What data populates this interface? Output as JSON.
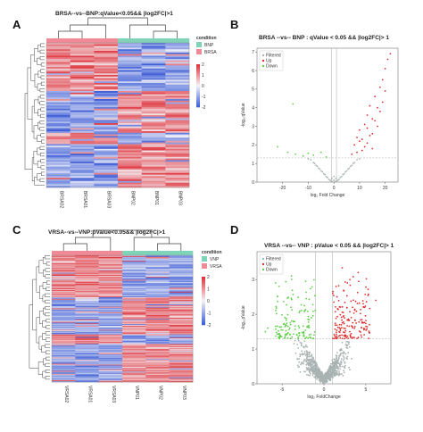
{
  "colors": {
    "heat_low": "#3f5fd8",
    "heat_mid": "#f3f3f7",
    "heat_high": "#e0333b",
    "ann_a": "#f08a96",
    "ann_b": "#7fd3b7",
    "volcano_up": "#e03030",
    "volcano_down": "#5fcf4a",
    "volcano_filtered": "#a9b3b1"
  },
  "chart_data": [
    {
      "panel": "A",
      "type": "heatmap",
      "title": "BRSA--vs--BNP:qValue<0.05&& |log2FC|>1",
      "columns": [
        "BRSA02",
        "BRSA01",
        "BRSA03",
        "BNP02",
        "BNP01",
        "BNP03"
      ],
      "column_groups": [
        "BRSA",
        "BRSA",
        "BRSA",
        "BNP",
        "BNP",
        "BNP"
      ],
      "legend_title": "condition",
      "legend_items": [
        {
          "label": "BNP",
          "color": "#7fd3b7"
        },
        {
          "label": "BRSA",
          "color": "#f08a96"
        }
      ],
      "scale_ticks": [
        "2",
        "1",
        "0",
        "-1",
        "-2"
      ],
      "scale_range": [
        -2,
        2
      ],
      "row_count": 90
    },
    {
      "panel": "B",
      "type": "scatter",
      "title": "BRSA --vs-- BNP : qValue < 0.05 && |log2FC|> 1",
      "xlabel": "log₂ Fold Change",
      "ylabel": "-log₁₀qValue",
      "xlim": [
        -30,
        25
      ],
      "ylim": [
        0,
        7.2
      ],
      "x_ticks": [
        "-20",
        "-10",
        "0",
        "10",
        "20"
      ],
      "y_ticks": [
        "0",
        "1",
        "2",
        "3",
        "4",
        "5",
        "6",
        "7"
      ],
      "legend": [
        "Filtered",
        "Up",
        "Down"
      ],
      "threshold_y": 1.3,
      "threshold_x": [
        -1,
        1
      ],
      "up_points": [
        [
          8,
          2.0
        ],
        [
          9,
          2.4
        ],
        [
          10,
          2.8
        ],
        [
          11,
          2.3
        ],
        [
          12,
          3.1
        ],
        [
          13,
          3.6
        ],
        [
          14,
          4.1
        ],
        [
          15,
          3.4
        ],
        [
          16,
          4.6
        ],
        [
          17,
          4.0
        ],
        [
          18,
          5.1
        ],
        [
          19,
          5.5
        ],
        [
          20,
          6.1
        ],
        [
          21,
          6.6
        ],
        [
          22,
          6.9
        ],
        [
          11,
          1.7
        ],
        [
          13,
          2.1
        ],
        [
          15,
          2.6
        ],
        [
          17,
          3.0
        ],
        [
          9,
          1.6
        ],
        [
          12,
          1.9
        ],
        [
          14,
          2.5
        ],
        [
          16,
          3.3
        ],
        [
          18,
          3.8
        ],
        [
          19,
          4.3
        ],
        [
          10,
          2.2
        ],
        [
          13,
          2.9
        ],
        [
          20,
          4.9
        ],
        [
          15,
          1.8
        ],
        [
          7,
          1.5
        ]
      ],
      "down_points": [
        [
          -22,
          1.9
        ],
        [
          -18,
          1.6
        ],
        [
          -15,
          1.5
        ],
        [
          -12,
          1.4
        ],
        [
          -8,
          1.45
        ],
        [
          -5,
          1.6
        ],
        [
          -3,
          1.35
        ],
        [
          -10,
          1.55
        ],
        [
          -16,
          4.2
        ]
      ],
      "filtered_points": [
        [
          -1,
          0.05
        ],
        [
          -2,
          0.15
        ],
        [
          -3,
          0.3
        ],
        [
          -4,
          0.45
        ],
        [
          -5,
          0.6
        ],
        [
          -6,
          0.75
        ],
        [
          -7,
          0.9
        ],
        [
          -8,
          1.05
        ],
        [
          -9,
          1.2
        ],
        [
          1,
          0.05
        ],
        [
          2,
          0.15
        ],
        [
          3,
          0.3
        ],
        [
          4,
          0.45
        ],
        [
          5,
          0.6
        ],
        [
          6,
          0.75
        ],
        [
          7,
          0.9
        ],
        [
          8,
          1.05
        ],
        [
          9,
          1.2
        ],
        [
          0.5,
          0.02
        ],
        [
          -0.5,
          0.02
        ],
        [
          1.5,
          0.1
        ],
        [
          -1.5,
          0.1
        ],
        [
          2.5,
          0.25
        ],
        [
          -2.5,
          0.25
        ],
        [
          3.5,
          0.4
        ],
        [
          -3.5,
          0.4
        ],
        [
          4.5,
          0.55
        ],
        [
          -4.5,
          0.55
        ],
        [
          5.5,
          0.7
        ],
        [
          -5.5,
          0.7
        ],
        [
          6.5,
          0.85
        ],
        [
          -6.5,
          0.85
        ],
        [
          7.5,
          1.0
        ],
        [
          -7.5,
          1.0
        ],
        [
          10,
          1.25
        ],
        [
          -10,
          1.25
        ],
        [
          0,
          0.1
        ],
        [
          0,
          0.3
        ],
        [
          0.8,
          0.2
        ],
        [
          -0.8,
          0.2
        ]
      ]
    },
    {
      "panel": "C",
      "type": "heatmap",
      "title": "VRSA--vs--VNP:pValue<0.05&& |log2FC|>1",
      "columns": [
        "VRSA02",
        "VRSA01",
        "VRSA03",
        "VNP01",
        "VNP02",
        "VNP03"
      ],
      "column_groups": [
        "VRSA",
        "VRSA",
        "VRSA",
        "VNP",
        "VNP",
        "VNP"
      ],
      "legend_title": "condition",
      "legend_items": [
        {
          "label": "VNP",
          "color": "#7fd3b7"
        },
        {
          "label": "VRSA",
          "color": "#f08a96"
        }
      ],
      "scale_ticks": [
        "2",
        "1",
        "0",
        "-1",
        "-2"
      ],
      "scale_range": [
        -2,
        2
      ],
      "row_count": 160
    },
    {
      "panel": "D",
      "type": "scatter",
      "title": "VRSA --vs-- VNP : pValue < 0.05 && |log2FC|> 1",
      "xlabel": "log₂ FoldChange",
      "ylabel": "-log₁₀pValue",
      "xlim": [
        -8,
        8
      ],
      "ylim": [
        0,
        3.8
      ],
      "x_ticks": [
        "-5",
        "0",
        "5"
      ],
      "y_ticks": [
        "0",
        "1",
        "2",
        "3"
      ],
      "legend": [
        "Filtered",
        "Up",
        "Down"
      ],
      "threshold_y": 1.3,
      "threshold_x": [
        -1,
        1
      ]
    }
  ]
}
